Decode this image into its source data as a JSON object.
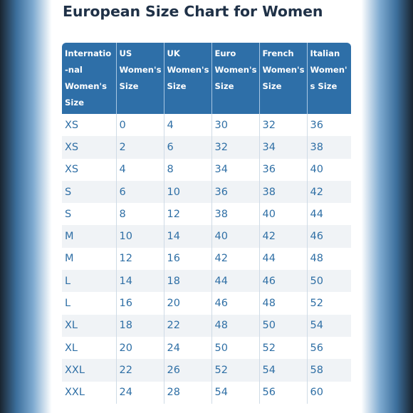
{
  "title": "European Size Chart for Women",
  "headers": [
    "Internatio-nal Women's Size",
    "US Women's Size",
    "UK Women's Size",
    "Euro Women's Size",
    "French Women's Size",
    "Italian Women's Size"
  ],
  "rows": [
    [
      "XS",
      "0",
      "4",
      "30",
      "32",
      "36"
    ],
    [
      "XS",
      "2",
      "6",
      "32",
      "34",
      "38"
    ],
    [
      "XS",
      "4",
      "8",
      "34",
      "36",
      "40"
    ],
    [
      "S",
      "6",
      "10",
      "36",
      "38",
      "42"
    ],
    [
      "S",
      "8",
      "12",
      "38",
      "40",
      "44"
    ],
    [
      "M",
      "10",
      "14",
      "40",
      "42",
      "46"
    ],
    [
      "M",
      "12",
      "16",
      "42",
      "44",
      "48"
    ],
    [
      "L",
      "14",
      "18",
      "44",
      "46",
      "50"
    ],
    [
      "L",
      "16",
      "20",
      "46",
      "48",
      "52"
    ],
    [
      "XL",
      "18",
      "22",
      "48",
      "50",
      "54"
    ],
    [
      "XL",
      "20",
      "24",
      "50",
      "52",
      "56"
    ],
    [
      "XXL",
      "22",
      "26",
      "52",
      "54",
      "58"
    ],
    [
      "XXL",
      "24",
      "28",
      "54",
      "56",
      "60"
    ]
  ],
  "colors": {
    "header_bg": "#2e6fa8",
    "cell_text": "#2f6fa5",
    "title_text": "#1f3147",
    "stripe": "#f0f3f6"
  }
}
